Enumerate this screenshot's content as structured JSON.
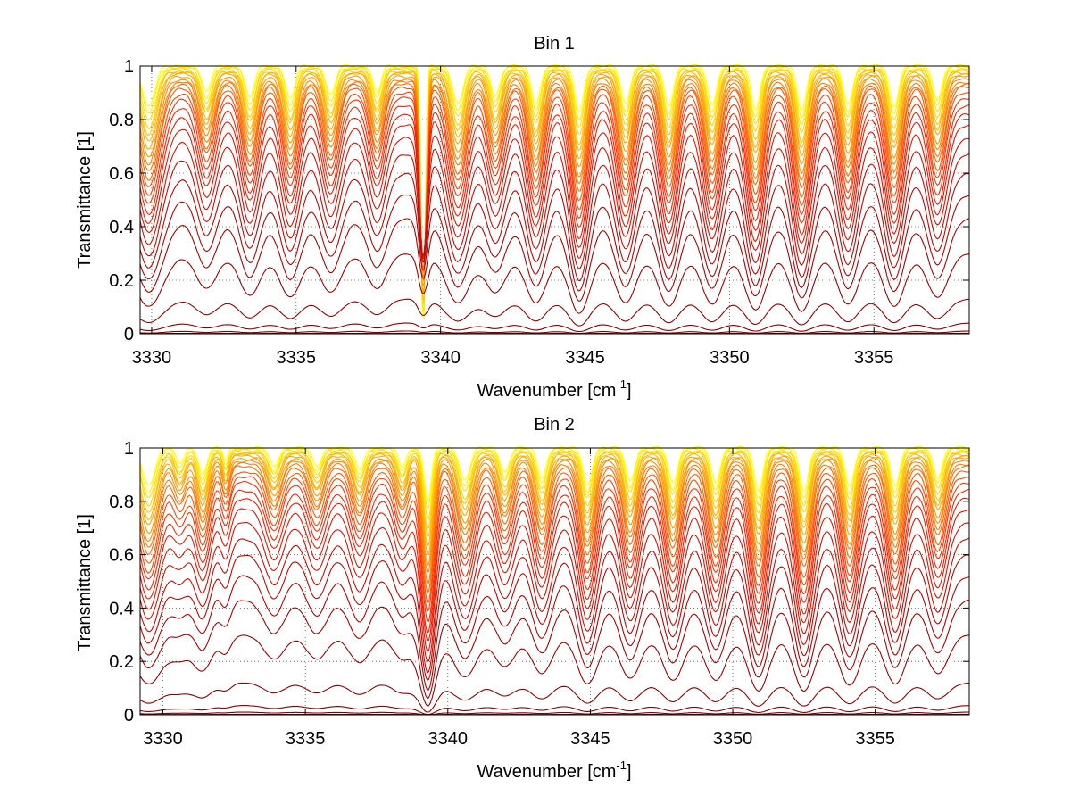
{
  "chart_data": [
    {
      "type": "line",
      "title": "Bin 1",
      "xlabel": "Wavenumber [cm",
      "xlabel_sup": "-1",
      "xlabel_end": "]",
      "ylabel": "Transmittance [1]",
      "xlim": [
        3329.6,
        3358.3
      ],
      "ylim": [
        0,
        1
      ],
      "xticks": [
        3330,
        3335,
        3340,
        3345,
        3350,
        3355
      ],
      "yticks": [
        0,
        0.2,
        0.4,
        0.6,
        0.8,
        1
      ],
      "ytick_labels": [
        "0",
        "0.2",
        "0.4",
        "0.6",
        "0.8",
        "1"
      ],
      "grid": true,
      "lines": [
        {
          "x": 3329.9,
          "depth": 0.75,
          "width": 0.3,
          "weak_only": false
        },
        {
          "x": 3331.9,
          "depth": 0.5,
          "width": 0.22,
          "weak_only": false
        },
        {
          "x": 3333.4,
          "depth": 0.6,
          "width": 0.22,
          "weak_only": false
        },
        {
          "x": 3334.8,
          "depth": 0.62,
          "width": 0.22,
          "weak_only": false
        },
        {
          "x": 3336.2,
          "depth": 0.55,
          "width": 0.22,
          "weak_only": false
        },
        {
          "x": 3337.8,
          "depth": 0.5,
          "width": 0.2,
          "weak_only": false
        },
        {
          "x": 3339.4,
          "depth": 1.0,
          "width": 0.1,
          "weak_only": true
        },
        {
          "x": 3340.6,
          "depth": 0.7,
          "width": 0.25,
          "weak_only": false
        },
        {
          "x": 3341.9,
          "depth": 0.55,
          "width": 0.22,
          "weak_only": false
        },
        {
          "x": 3343.3,
          "depth": 0.7,
          "width": 0.22,
          "weak_only": false
        },
        {
          "x": 3344.8,
          "depth": 0.85,
          "width": 0.22,
          "weak_only": false
        },
        {
          "x": 3346.4,
          "depth": 0.7,
          "width": 0.22,
          "weak_only": false
        },
        {
          "x": 3347.9,
          "depth": 0.75,
          "width": 0.22,
          "weak_only": false
        },
        {
          "x": 3349.4,
          "depth": 0.72,
          "width": 0.22,
          "weak_only": false
        },
        {
          "x": 3350.9,
          "depth": 0.8,
          "width": 0.22,
          "weak_only": false
        },
        {
          "x": 3352.5,
          "depth": 0.82,
          "width": 0.22,
          "weak_only": false
        },
        {
          "x": 3354.1,
          "depth": 0.72,
          "width": 0.22,
          "weak_only": false
        },
        {
          "x": 3355.7,
          "depth": 0.75,
          "width": 0.22,
          "weak_only": false
        },
        {
          "x": 3357.2,
          "depth": 0.62,
          "width": 0.22,
          "weak_only": false
        }
      ],
      "continuum_levels": [
        1.0,
        0.995,
        0.99,
        0.985,
        0.98,
        0.975,
        0.97,
        0.96,
        0.95,
        0.94,
        0.93,
        0.92,
        0.9,
        0.88,
        0.85,
        0.82,
        0.78,
        0.73,
        0.67,
        0.6,
        0.52,
        0.43,
        0.3,
        0.13,
        0.04,
        0.01,
        0.002
      ],
      "colors": [
        "#ffff00",
        "#ffe000",
        "#ffc000",
        "#ff9f00",
        "#ff7f00",
        "#ff5a00",
        "#ff3000",
        "#ee1a00",
        "#d40d00",
        "#b80400",
        "#a00000",
        "#8a0000",
        "#7a0000"
      ]
    },
    {
      "type": "line",
      "title": "Bin 2",
      "xlabel": "Wavenumber [cm",
      "xlabel_sup": "-1",
      "xlabel_end": "]",
      "ylabel": "Transmittance [1]",
      "xlim": [
        3329.2,
        3358.3
      ],
      "ylim": [
        0,
        1
      ],
      "xticks": [
        3330,
        3335,
        3340,
        3345,
        3350,
        3355
      ],
      "yticks": [
        0,
        0.2,
        0.4,
        0.6,
        0.8,
        1
      ],
      "ytick_labels": [
        "0",
        "0.2",
        "0.4",
        "0.6",
        "0.8",
        "1"
      ],
      "grid": true,
      "lines": [
        {
          "x": 3329.5,
          "depth": 0.7,
          "width": 0.3,
          "weak_only": false
        },
        {
          "x": 3330.6,
          "depth": 0.3,
          "width": 0.2,
          "weak_only": false
        },
        {
          "x": 3331.4,
          "depth": 0.5,
          "width": 0.2,
          "weak_only": false
        },
        {
          "x": 3332.2,
          "depth": 0.25,
          "width": 0.12,
          "weak_only": false
        },
        {
          "x": 3333.9,
          "depth": 0.35,
          "width": 0.22,
          "weak_only": false
        },
        {
          "x": 3335.4,
          "depth": 0.35,
          "width": 0.22,
          "weak_only": false
        },
        {
          "x": 3336.9,
          "depth": 0.4,
          "width": 0.22,
          "weak_only": false
        },
        {
          "x": 3338.4,
          "depth": 0.35,
          "width": 0.2,
          "weak_only": false
        },
        {
          "x": 3339.3,
          "depth": 1.0,
          "width": 0.18,
          "weak_only": false
        },
        {
          "x": 3340.6,
          "depth": 0.6,
          "width": 0.25,
          "weak_only": false
        },
        {
          "x": 3342.0,
          "depth": 0.45,
          "width": 0.22,
          "weak_only": false
        },
        {
          "x": 3343.3,
          "depth": 0.55,
          "width": 0.22,
          "weak_only": false
        },
        {
          "x": 3344.9,
          "depth": 0.7,
          "width": 0.22,
          "weak_only": false
        },
        {
          "x": 3346.4,
          "depth": 0.62,
          "width": 0.22,
          "weak_only": false
        },
        {
          "x": 3347.9,
          "depth": 0.65,
          "width": 0.22,
          "weak_only": false
        },
        {
          "x": 3349.4,
          "depth": 0.65,
          "width": 0.22,
          "weak_only": false
        },
        {
          "x": 3350.9,
          "depth": 0.8,
          "width": 0.22,
          "weak_only": false
        },
        {
          "x": 3352.5,
          "depth": 0.8,
          "width": 0.22,
          "weak_only": false
        },
        {
          "x": 3354.1,
          "depth": 0.72,
          "width": 0.22,
          "weak_only": false
        },
        {
          "x": 3355.7,
          "depth": 0.7,
          "width": 0.22,
          "weak_only": false
        },
        {
          "x": 3357.2,
          "depth": 0.55,
          "width": 0.22,
          "weak_only": false
        }
      ],
      "continuum_levels": [
        1.0,
        0.995,
        0.99,
        0.985,
        0.98,
        0.975,
        0.97,
        0.96,
        0.95,
        0.94,
        0.93,
        0.91,
        0.89,
        0.87,
        0.84,
        0.81,
        0.77,
        0.72,
        0.66,
        0.6,
        0.52,
        0.43,
        0.3,
        0.12,
        0.035,
        0.01,
        0.002
      ],
      "colors": [
        "#ffff00",
        "#ffe000",
        "#ffc000",
        "#ff9f00",
        "#ff7f00",
        "#ff5a00",
        "#ff3000",
        "#ee1a00",
        "#d40d00",
        "#b80400",
        "#a00000",
        "#8a0000",
        "#7a0000"
      ]
    }
  ]
}
